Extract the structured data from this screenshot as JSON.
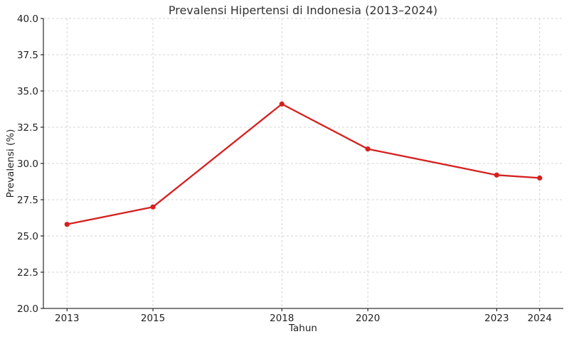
{
  "chart_data": {
    "type": "line",
    "title": "Prevalensi Hipertensi di Indonesia (2013–2024)",
    "xlabel": "Tahun",
    "ylabel": "Prevalensi (%)",
    "x": [
      2013,
      2015,
      2018,
      2020,
      2023,
      2024
    ],
    "series": [
      {
        "values": [
          25.8,
          27.0,
          34.1,
          31.0,
          29.2,
          29.0
        ]
      }
    ],
    "xticks": [
      "2013",
      "2015",
      "2018",
      "2020",
      "2023",
      "2024"
    ],
    "yticks": [
      "20.0",
      "22.5",
      "25.0",
      "27.5",
      "30.0",
      "32.5",
      "35.0",
      "37.5",
      "40.0"
    ],
    "ylim": [
      20,
      40
    ],
    "xlim": [
      2012.45,
      2024.55
    ],
    "grid": true,
    "legend": "none",
    "line_color": "#d62020"
  }
}
